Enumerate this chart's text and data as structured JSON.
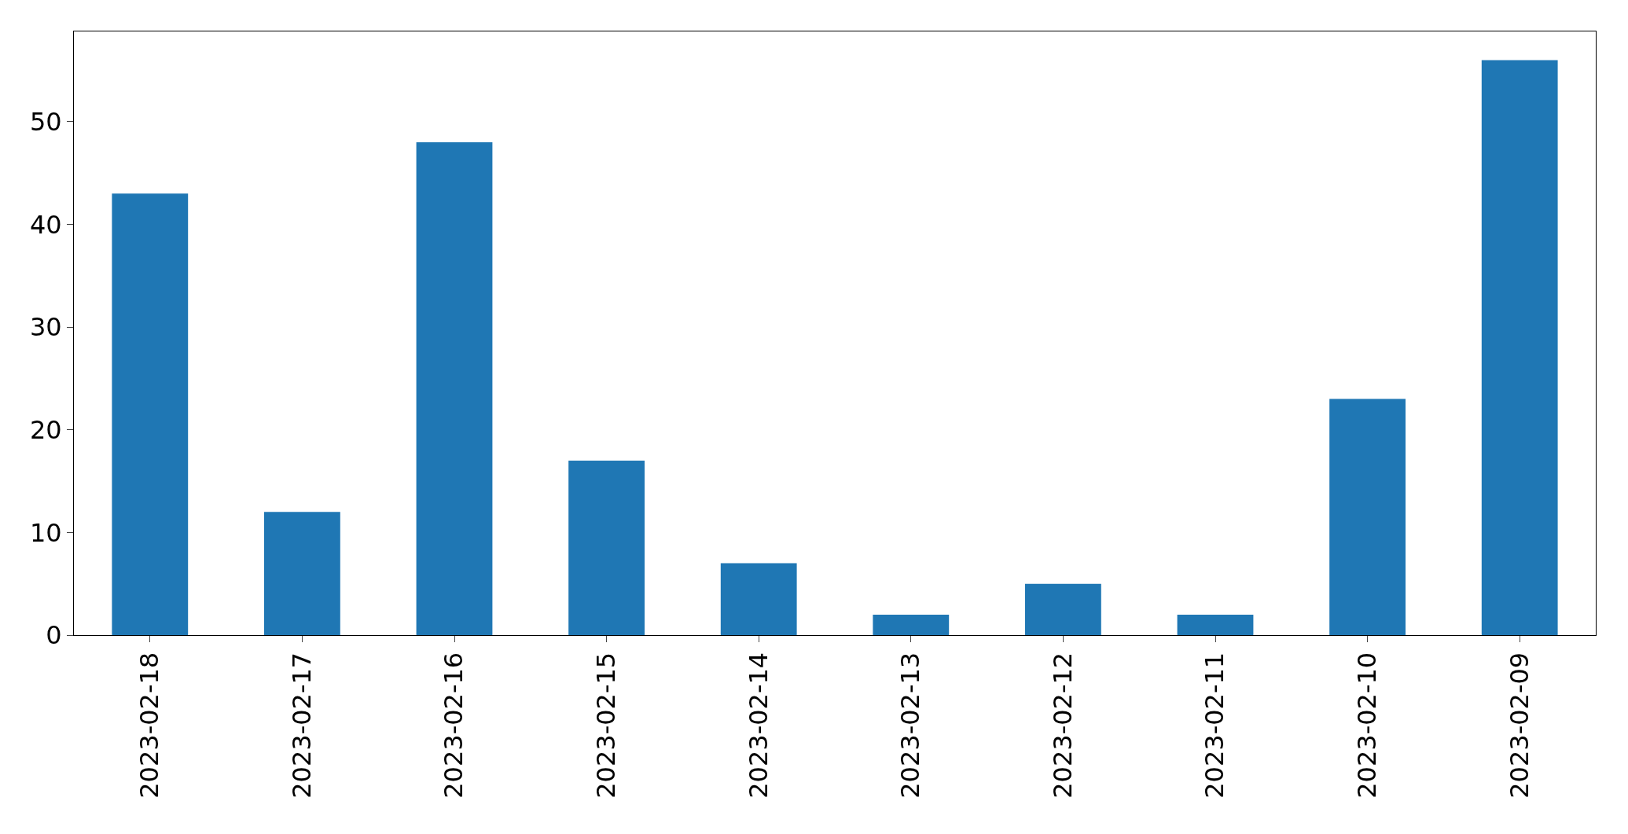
{
  "chart_data": {
    "type": "bar",
    "categories": [
      "2023-02-18",
      "2023-02-17",
      "2023-02-16",
      "2023-02-15",
      "2023-02-14",
      "2023-02-13",
      "2023-02-12",
      "2023-02-11",
      "2023-02-10",
      "2023-02-09"
    ],
    "values": [
      43,
      12,
      48,
      17,
      7,
      2,
      5,
      2,
      23,
      56
    ],
    "color": "#1f77b4",
    "ylim": [
      0,
      58.8
    ],
    "yticks": [
      0,
      10,
      20,
      30,
      40,
      50
    ]
  }
}
